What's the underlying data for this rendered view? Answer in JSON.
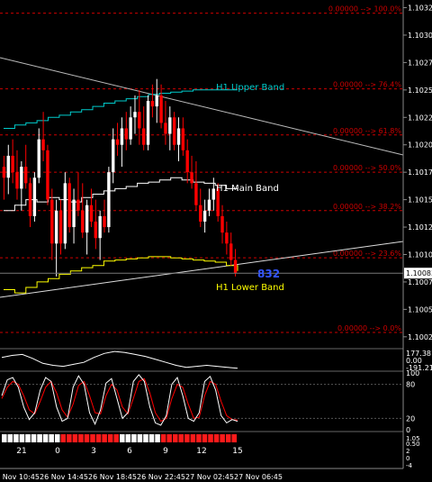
{
  "chart_data": {
    "type": "candlestick",
    "symbol_timeframe": "H1",
    "price_axis": {
      "ticks": [
        1.10325,
        1.103,
        1.10275,
        1.1025,
        1.10225,
        1.102,
        1.10175,
        1.1015,
        1.10125,
        1.101,
        1.10075,
        1.1005,
        1.10025
      ],
      "current_price": 1.10083,
      "ylim": [
        1.10015,
        1.10332
      ]
    },
    "time_axis": {
      "labels": [
        "26 Nov 10:45",
        "26 Nov 14:45",
        "26 Nov 18:45",
        "26 Nov 22:45",
        "27 Nov 02:45",
        "27 Nov 06:45"
      ]
    },
    "fibonacci_levels": [
      {
        "label": "0.00000 --> 100.0%",
        "price": 1.1032
      },
      {
        "label": "0.00000 --> 76.4%",
        "price": 1.10251
      },
      {
        "label": "0.00000 --> 61.8%",
        "price": 1.10209
      },
      {
        "label": "0.00000 --> 50.0%",
        "price": 1.10175
      },
      {
        "label": "0.00000 --> 38.2%",
        "price": 1.1014
      },
      {
        "label": "0.00000 --> 23.6%",
        "price": 1.10097
      },
      {
        "label": "0.00000 --> 0.0%",
        "price": 1.10029
      }
    ],
    "band_labels": {
      "upper": "H1 Upper Band",
      "main": "H1 Main Band",
      "lower": "H1 Lower Band"
    },
    "counter_value": "832",
    "candles": [
      [
        1.1018,
        1.1019,
        1.1015,
        1.1017
      ],
      [
        1.1017,
        1.102,
        1.10155,
        1.1019
      ],
      [
        1.1019,
        1.10205,
        1.10165,
        1.10175
      ],
      [
        1.10175,
        1.10195,
        1.1015,
        1.1016
      ],
      [
        1.1016,
        1.10185,
        1.1014,
        1.1018
      ],
      [
        1.1018,
        1.102,
        1.1016,
        1.10165
      ],
      [
        1.10165,
        1.1017,
        1.10125,
        1.10135
      ],
      [
        1.10135,
        1.10175,
        1.1013,
        1.1017
      ],
      [
        1.1017,
        1.10215,
        1.10165,
        1.10205
      ],
      [
        1.10205,
        1.1023,
        1.10185,
        1.10195
      ],
      [
        1.10195,
        1.102,
        1.10145,
        1.1015
      ],
      [
        1.1015,
        1.1016,
        1.10095,
        1.1011
      ],
      [
        1.1011,
        1.1015,
        1.1008,
        1.1014
      ],
      [
        1.1014,
        1.1015,
        1.101,
        1.1011
      ],
      [
        1.1011,
        1.10175,
        1.10105,
        1.10165
      ],
      [
        1.10165,
        1.1017,
        1.1012,
        1.10125
      ],
      [
        1.10125,
        1.1016,
        1.1011,
        1.1015
      ],
      [
        1.1015,
        1.10175,
        1.10135,
        1.1014
      ],
      [
        1.1014,
        1.10165,
        1.10115,
        1.1012
      ],
      [
        1.1012,
        1.1015,
        1.101,
        1.10145
      ],
      [
        1.10145,
        1.1016,
        1.10125,
        1.1013
      ],
      [
        1.1013,
        1.1015,
        1.10105,
        1.10115
      ],
      [
        1.10115,
        1.1014,
        1.10095,
        1.10135
      ],
      [
        1.10135,
        1.1015,
        1.1012,
        1.10125
      ],
      [
        1.10125,
        1.1018,
        1.1012,
        1.10175
      ],
      [
        1.10175,
        1.10215,
        1.10165,
        1.10205
      ],
      [
        1.10205,
        1.1022,
        1.1019,
        1.102
      ],
      [
        1.102,
        1.10225,
        1.1018,
        1.10215
      ],
      [
        1.10215,
        1.1023,
        1.10195,
        1.10205
      ],
      [
        1.10205,
        1.10235,
        1.102,
        1.10225
      ],
      [
        1.10225,
        1.10245,
        1.1021,
        1.1023
      ],
      [
        1.1023,
        1.1025,
        1.102,
        1.10215
      ],
      [
        1.10215,
        1.10235,
        1.10195,
        1.102
      ],
      [
        1.102,
        1.10245,
        1.10195,
        1.1024
      ],
      [
        1.1024,
        1.10255,
        1.10225,
        1.10235
      ],
      [
        1.10235,
        1.1026,
        1.1022,
        1.10245
      ],
      [
        1.10245,
        1.10255,
        1.10215,
        1.1022
      ],
      [
        1.1022,
        1.1024,
        1.102,
        1.1021
      ],
      [
        1.1021,
        1.10235,
        1.10195,
        1.10225
      ],
      [
        1.10225,
        1.1023,
        1.10195,
        1.102
      ],
      [
        1.102,
        1.10225,
        1.10185,
        1.10215
      ],
      [
        1.10215,
        1.10225,
        1.1019,
        1.10195
      ],
      [
        1.10195,
        1.10205,
        1.10165,
        1.10175
      ],
      [
        1.10175,
        1.1019,
        1.1016,
        1.10165
      ],
      [
        1.10165,
        1.10185,
        1.1014,
        1.10145
      ],
      [
        1.10145,
        1.1016,
        1.10125,
        1.1013
      ],
      [
        1.1013,
        1.1015,
        1.1012,
        1.1014
      ],
      [
        1.1014,
        1.1016,
        1.10135,
        1.1015
      ],
      [
        1.1015,
        1.1017,
        1.1014,
        1.1016
      ],
      [
        1.1016,
        1.10165,
        1.1013,
        1.10135
      ],
      [
        1.10135,
        1.10145,
        1.1011,
        1.1012
      ],
      [
        1.1012,
        1.1013,
        1.101,
        1.1011
      ],
      [
        1.1011,
        1.1012,
        1.1009,
        1.10095
      ],
      [
        1.10095,
        1.10105,
        1.1008,
        1.10083
      ]
    ],
    "upper_band": [
      1.10215,
      1.10218,
      1.1022,
      1.10222,
      1.10225,
      1.10227,
      1.1023,
      1.10232,
      1.10235,
      1.10238,
      1.1024,
      1.10242,
      1.10244,
      1.10246,
      1.10247,
      1.10248,
      1.10249,
      1.1025,
      1.1025,
      1.1025,
      1.1025,
      1.1025
    ],
    "main_band": [
      1.1014,
      1.10145,
      1.1015,
      1.10148,
      1.10152,
      1.1015,
      1.10148,
      1.10152,
      1.10155,
      1.10158,
      1.1016,
      1.10162,
      1.10165,
      1.10166,
      1.10168,
      1.1017,
      1.10168,
      1.10166,
      1.10165,
      1.10163,
      1.1016,
      1.10158
    ],
    "lower_band": [
      1.10068,
      1.10065,
      1.1007,
      1.10075,
      1.10078,
      1.10082,
      1.10085,
      1.10088,
      1.1009,
      1.10094,
      1.10095,
      1.10096,
      1.10097,
      1.10098,
      1.10098,
      1.10097,
      1.10096,
      1.10095,
      1.10094,
      1.10093,
      1.1009,
      1.10085
    ],
    "indicator1": {
      "ticks": [
        "177.3819",
        "0.00",
        "-191.213"
      ],
      "values": [
        0.3,
        0.5,
        0.6,
        0.2,
        -0.3,
        -0.5,
        -0.6,
        -0.4,
        -0.2,
        0.3,
        0.7,
        0.9,
        0.8,
        0.6,
        0.4,
        0.1,
        -0.2,
        -0.5,
        -0.7,
        -0.6,
        -0.5,
        -0.6,
        -0.7,
        -0.8
      ]
    },
    "stochastic": {
      "ticks": [
        "100",
        "80",
        "20",
        "0"
      ],
      "k": [
        60,
        88,
        92,
        75,
        40,
        18,
        30,
        70,
        92,
        85,
        40,
        15,
        20,
        75,
        95,
        80,
        30,
        10,
        35,
        82,
        90,
        55,
        20,
        30,
        85,
        97,
        85,
        40,
        12,
        8,
        25,
        80,
        92,
        60,
        20,
        15,
        30,
        85,
        94,
        70,
        25,
        12,
        18,
        15
      ],
      "d": [
        55,
        75,
        85,
        80,
        60,
        35,
        28,
        50,
        75,
        85,
        65,
        35,
        22,
        45,
        78,
        85,
        60,
        30,
        28,
        60,
        80,
        70,
        40,
        28,
        55,
        85,
        90,
        65,
        30,
        15,
        20,
        55,
        80,
        75,
        45,
        20,
        22,
        60,
        85,
        80,
        50,
        25,
        18,
        17
      ]
    },
    "time_bar": {
      "labels": [
        "21",
        "0",
        "3",
        "6",
        "9",
        "12",
        "15"
      ],
      "right_labels": [
        "1.05",
        "0.50"
      ],
      "right_labels2": [
        "2",
        "0",
        "-4"
      ]
    },
    "colors": {
      "background": "#000000",
      "bull": "#ffffff",
      "bear": "#ff0000",
      "upper_band": "#00cccc",
      "main_band": "#ffffff",
      "lower_band": "#ffff00",
      "fib": "#cc0000",
      "counter": "#3355ff",
      "stoch_k": "#ffffff",
      "stoch_d": "#ff0000"
    }
  }
}
